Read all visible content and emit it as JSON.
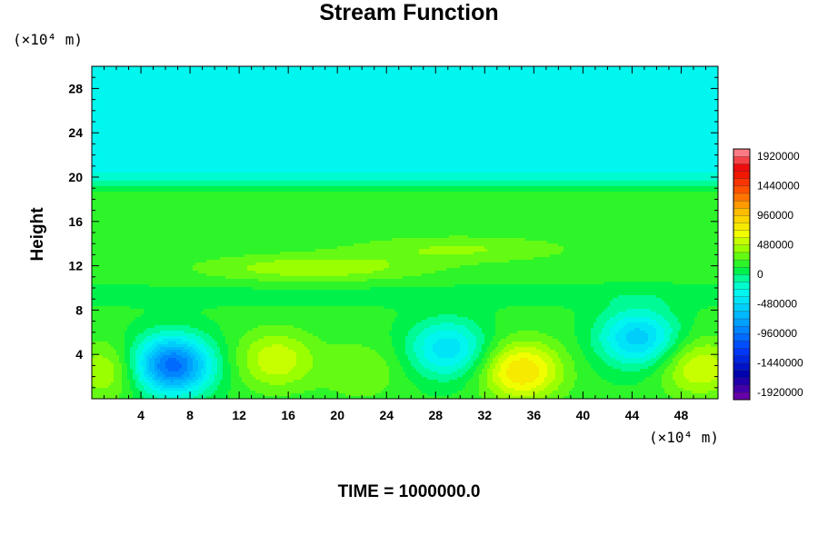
{
  "chart_data": {
    "type": "heatmap",
    "title": "Stream Function",
    "ylabel": "Height",
    "x_unit": "(×10⁴ m)",
    "y_unit": "(×10⁴ m)",
    "bottom_text": "TIME = 1000000.0",
    "xlim": [
      0,
      51
    ],
    "ylim": [
      0,
      30
    ],
    "x_ticks": [
      4,
      8,
      12,
      16,
      20,
      24,
      28,
      32,
      36,
      40,
      44,
      48
    ],
    "y_ticks": [
      4,
      8,
      12,
      16,
      20,
      24,
      28
    ],
    "colorbar": {
      "range": [
        -2040000,
        2040000
      ],
      "step": 120000,
      "labels": [
        "1920000",
        "1440000",
        "960000",
        "480000",
        "0",
        "-480000",
        "-960000",
        "-1440000",
        "-1920000"
      ]
    },
    "field": {
      "upper_level_value": -280000,
      "mid_level_value": 150000,
      "features": [
        {
          "x": 6.5,
          "y": 3,
          "value": -1200000
        },
        {
          "x": 1.5,
          "y": 2.5,
          "value": 350000
        },
        {
          "x": 15,
          "y": 3.5,
          "value": 430000
        },
        {
          "x": 22,
          "y": 2.5,
          "value": 200000
        },
        {
          "x": 29,
          "y": 4.5,
          "value": -600000
        },
        {
          "x": 35,
          "y": 2.5,
          "value": 700000
        },
        {
          "x": 44.5,
          "y": 5.5,
          "value": -700000
        },
        {
          "x": 49.5,
          "y": 2.8,
          "value": 450000
        },
        {
          "x": 18,
          "y": 11.8,
          "value": 300000
        },
        {
          "x": 30,
          "y": 13.5,
          "value": 220000
        }
      ]
    }
  }
}
